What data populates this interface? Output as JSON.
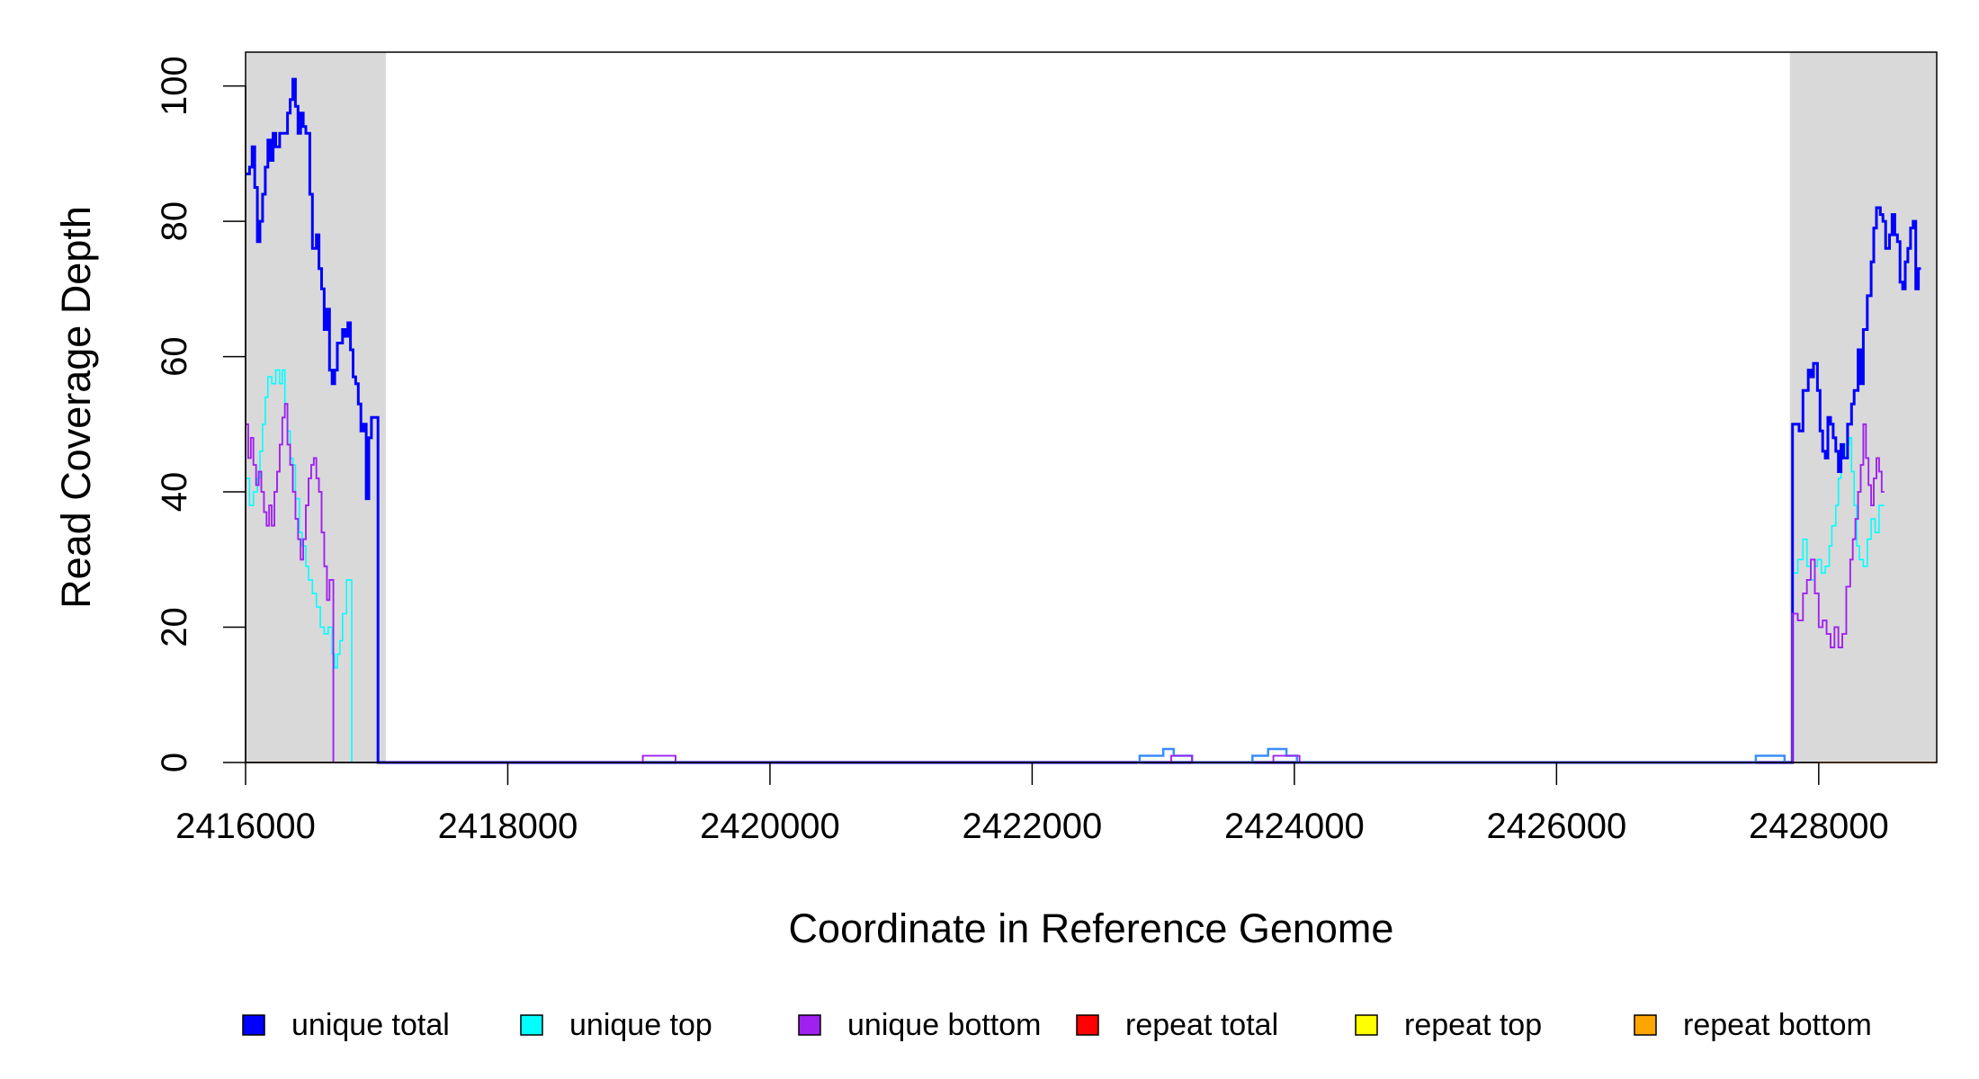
{
  "chart_data": {
    "type": "line",
    "xlabel": "Coordinate in Reference Genome",
    "ylabel": "Read Coverage Depth",
    "xlim": [
      2416000,
      2428900
    ],
    "ylim": [
      0,
      105
    ],
    "x_ticks": [
      2416000,
      2418000,
      2420000,
      2422000,
      2424000,
      2426000,
      2428000
    ],
    "x_tick_labels": [
      "2416000",
      "2418000",
      "2420000",
      "2422000",
      "2424000",
      "2426000",
      "2428000"
    ],
    "y_ticks": [
      0,
      20,
      40,
      60,
      80,
      100
    ],
    "y_tick_labels": [
      "0",
      "20",
      "40",
      "60",
      "80",
      "100"
    ],
    "shaded_regions": [
      [
        2416000,
        2417070
      ],
      [
        2427780,
        2428900
      ]
    ],
    "grid": false,
    "legend_position": "bottom",
    "series": [
      {
        "name": "unique total",
        "color": "#0000FF",
        "points": [
          [
            2416000,
            87
          ],
          [
            2416030,
            88
          ],
          [
            2416050,
            91
          ],
          [
            2416070,
            85
          ],
          [
            2416090,
            77
          ],
          [
            2416110,
            80
          ],
          [
            2416130,
            84
          ],
          [
            2416150,
            88
          ],
          [
            2416170,
            92
          ],
          [
            2416190,
            89
          ],
          [
            2416210,
            93
          ],
          [
            2416230,
            91
          ],
          [
            2416260,
            93
          ],
          [
            2416300,
            93
          ],
          [
            2416320,
            96
          ],
          [
            2416340,
            98
          ],
          [
            2416360,
            101
          ],
          [
            2416380,
            97
          ],
          [
            2416400,
            93
          ],
          [
            2416420,
            96
          ],
          [
            2416440,
            94
          ],
          [
            2416460,
            93
          ],
          [
            2416490,
            84
          ],
          [
            2416510,
            76
          ],
          [
            2416540,
            78
          ],
          [
            2416560,
            73
          ],
          [
            2416580,
            70
          ],
          [
            2416600,
            64
          ],
          [
            2416620,
            67
          ],
          [
            2416640,
            58
          ],
          [
            2416660,
            56
          ],
          [
            2416680,
            58
          ],
          [
            2416700,
            62
          ],
          [
            2416740,
            64
          ],
          [
            2416760,
            63
          ],
          [
            2416780,
            65
          ],
          [
            2416800,
            61
          ],
          [
            2416820,
            57
          ],
          [
            2416840,
            56
          ],
          [
            2416860,
            53
          ],
          [
            2416880,
            49
          ],
          [
            2416900,
            50
          ],
          [
            2416920,
            39
          ],
          [
            2416940,
            48
          ],
          [
            2416960,
            51
          ],
          [
            2417000,
            51
          ],
          [
            2417010,
            0
          ],
          [
            2419000,
            0
          ],
          [
            2427780,
            0
          ],
          [
            2427800,
            50
          ],
          [
            2427850,
            49
          ],
          [
            2427880,
            55
          ],
          [
            2427920,
            58
          ],
          [
            2427940,
            57
          ],
          [
            2427960,
            59
          ],
          [
            2427990,
            55
          ],
          [
            2428010,
            49
          ],
          [
            2428030,
            46
          ],
          [
            2428050,
            45
          ],
          [
            2428070,
            51
          ],
          [
            2428090,
            50
          ],
          [
            2428110,
            48
          ],
          [
            2428130,
            46
          ],
          [
            2428150,
            43
          ],
          [
            2428170,
            47
          ],
          [
            2428190,
            45
          ],
          [
            2428220,
            50
          ],
          [
            2428250,
            53
          ],
          [
            2428270,
            55
          ],
          [
            2428300,
            61
          ],
          [
            2428320,
            56
          ],
          [
            2428340,
            64
          ],
          [
            2428370,
            69
          ],
          [
            2428400,
            74
          ],
          [
            2428420,
            79
          ],
          [
            2428440,
            82
          ],
          [
            2428470,
            81
          ],
          [
            2428490,
            80
          ],
          [
            2428510,
            76
          ],
          [
            2428540,
            78
          ],
          [
            2428560,
            81
          ],
          [
            2428580,
            78
          ],
          [
            2428600,
            77
          ],
          [
            2428620,
            71
          ],
          [
            2428640,
            70
          ],
          [
            2428660,
            74
          ],
          [
            2428680,
            76
          ],
          [
            2428700,
            79
          ],
          [
            2428720,
            80
          ],
          [
            2428740,
            70
          ],
          [
            2428760,
            73
          ],
          [
            2428780,
            73
          ]
        ]
      },
      {
        "name": "unique top",
        "color": "#00FFFF",
        "points": [
          [
            2416000,
            42
          ],
          [
            2416030,
            38
          ],
          [
            2416060,
            40
          ],
          [
            2416090,
            42
          ],
          [
            2416110,
            46
          ],
          [
            2416130,
            50
          ],
          [
            2416150,
            54
          ],
          [
            2416170,
            57
          ],
          [
            2416200,
            56
          ],
          [
            2416230,
            58
          ],
          [
            2416260,
            56
          ],
          [
            2416280,
            58
          ],
          [
            2416300,
            53
          ],
          [
            2416320,
            49
          ],
          [
            2416340,
            45
          ],
          [
            2416360,
            44
          ],
          [
            2416380,
            39
          ],
          [
            2416410,
            34
          ],
          [
            2416430,
            32
          ],
          [
            2416460,
            29
          ],
          [
            2416480,
            27
          ],
          [
            2416510,
            25
          ],
          [
            2416540,
            23
          ],
          [
            2416570,
            20
          ],
          [
            2416600,
            19
          ],
          [
            2416630,
            20
          ],
          [
            2416660,
            16
          ],
          [
            2416680,
            14
          ],
          [
            2416700,
            16
          ],
          [
            2416720,
            18
          ],
          [
            2416740,
            22
          ],
          [
            2416770,
            27
          ],
          [
            2416800,
            27
          ],
          [
            2416810,
            0
          ],
          [
            2427780,
            0
          ],
          [
            2427800,
            28
          ],
          [
            2427840,
            30
          ],
          [
            2427880,
            33
          ],
          [
            2427910,
            29
          ],
          [
            2427940,
            27
          ],
          [
            2427970,
            29
          ],
          [
            2427990,
            30
          ],
          [
            2428020,
            28
          ],
          [
            2428050,
            29
          ],
          [
            2428080,
            32
          ],
          [
            2428100,
            35
          ],
          [
            2428130,
            38
          ],
          [
            2428150,
            42
          ],
          [
            2428170,
            45
          ],
          [
            2428200,
            47
          ],
          [
            2428230,
            48
          ],
          [
            2428250,
            43
          ],
          [
            2428270,
            38
          ],
          [
            2428290,
            32
          ],
          [
            2428310,
            30
          ],
          [
            2428340,
            29
          ],
          [
            2428370,
            33
          ],
          [
            2428400,
            36
          ],
          [
            2428430,
            34
          ],
          [
            2428460,
            38
          ],
          [
            2428500,
            38
          ]
        ]
      },
      {
        "name": "unique bottom",
        "color": "#A020F0",
        "points": [
          [
            2416000,
            50
          ],
          [
            2416020,
            45
          ],
          [
            2416040,
            48
          ],
          [
            2416060,
            44
          ],
          [
            2416080,
            41
          ],
          [
            2416100,
            43
          ],
          [
            2416120,
            40
          ],
          [
            2416140,
            37
          ],
          [
            2416160,
            35
          ],
          [
            2416180,
            38
          ],
          [
            2416200,
            35
          ],
          [
            2416220,
            40
          ],
          [
            2416240,
            43
          ],
          [
            2416260,
            47
          ],
          [
            2416280,
            51
          ],
          [
            2416300,
            53
          ],
          [
            2416320,
            47
          ],
          [
            2416340,
            44
          ],
          [
            2416360,
            40
          ],
          [
            2416380,
            36
          ],
          [
            2416400,
            33
          ],
          [
            2416420,
            30
          ],
          [
            2416440,
            33
          ],
          [
            2416460,
            38
          ],
          [
            2416480,
            42
          ],
          [
            2416500,
            44
          ],
          [
            2416520,
            45
          ],
          [
            2416540,
            42
          ],
          [
            2416560,
            40
          ],
          [
            2416580,
            34
          ],
          [
            2416600,
            29
          ],
          [
            2416620,
            24
          ],
          [
            2416640,
            27
          ],
          [
            2416660,
            27
          ],
          [
            2416670,
            0
          ],
          [
            2419000,
            0
          ],
          [
            2419030,
            1
          ],
          [
            2419260,
            1
          ],
          [
            2419280,
            0
          ],
          [
            2423020,
            0
          ],
          [
            2423060,
            1
          ],
          [
            2423200,
            1
          ],
          [
            2423220,
            0
          ],
          [
            2423820,
            0
          ],
          [
            2423840,
            1
          ],
          [
            2424020,
            1
          ],
          [
            2424040,
            0
          ],
          [
            2427780,
            0
          ],
          [
            2427800,
            22
          ],
          [
            2427840,
            21
          ],
          [
            2427880,
            25
          ],
          [
            2427910,
            27
          ],
          [
            2427940,
            30
          ],
          [
            2427970,
            25
          ],
          [
            2428000,
            20
          ],
          [
            2428030,
            21
          ],
          [
            2428060,
            19
          ],
          [
            2428090,
            17
          ],
          [
            2428120,
            20
          ],
          [
            2428150,
            17
          ],
          [
            2428180,
            19
          ],
          [
            2428210,
            26
          ],
          [
            2428240,
            30
          ],
          [
            2428260,
            33
          ],
          [
            2428280,
            36
          ],
          [
            2428300,
            40
          ],
          [
            2428320,
            44
          ],
          [
            2428340,
            50
          ],
          [
            2428360,
            45
          ],
          [
            2428380,
            41
          ],
          [
            2428400,
            38
          ],
          [
            2428420,
            42
          ],
          [
            2428440,
            45
          ],
          [
            2428460,
            43
          ],
          [
            2428480,
            40
          ],
          [
            2428500,
            40
          ]
        ]
      },
      {
        "name": "repeat total",
        "color": "#FF0000",
        "points": [
          [
            2416000,
            0
          ],
          [
            2428900,
            0
          ]
        ]
      },
      {
        "name": "repeat top",
        "color": "#FFFF00",
        "points": [
          [
            2416000,
            0
          ],
          [
            2428900,
            0
          ]
        ]
      },
      {
        "name": "repeat bottom",
        "color": "#FFA500",
        "points": [
          [
            2416000,
            0
          ],
          [
            2428900,
            0
          ]
        ]
      }
    ],
    "extra_traces": [
      {
        "color": "#3A8DFF",
        "points": [
          [
            2422800,
            0
          ],
          [
            2422820,
            1
          ],
          [
            2422980,
            1
          ],
          [
            2423000,
            2
          ],
          [
            2423060,
            2
          ],
          [
            2423080,
            1
          ],
          [
            2423200,
            1
          ],
          [
            2423220,
            0
          ],
          [
            2423660,
            0
          ],
          [
            2423680,
            1
          ],
          [
            2423780,
            1
          ],
          [
            2423800,
            2
          ],
          [
            2423920,
            2
          ],
          [
            2423940,
            1
          ],
          [
            2424000,
            1
          ],
          [
            2424020,
            0
          ],
          [
            2427500,
            0
          ],
          [
            2427520,
            1
          ],
          [
            2427720,
            1
          ],
          [
            2427740,
            0
          ]
        ]
      }
    ]
  },
  "legend": [
    {
      "label": "unique total",
      "color": "#0000FF"
    },
    {
      "label": "unique top",
      "color": "#00FFFF"
    },
    {
      "label": "unique bottom",
      "color": "#A020F0"
    },
    {
      "label": "repeat total",
      "color": "#FF0000"
    },
    {
      "label": "repeat top",
      "color": "#FFFF00"
    },
    {
      "label": "repeat bottom",
      "color": "#FFA500"
    }
  ]
}
